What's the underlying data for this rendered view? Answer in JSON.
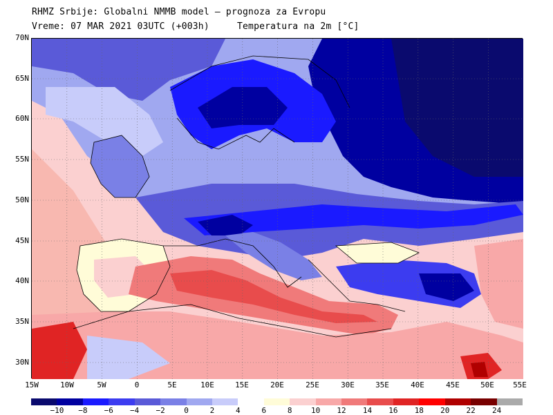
{
  "header": {
    "line1": "RHMZ Srbije: Globalni NMMB model — prognoza za Evropu",
    "line2": "Vreme: 07 MAR 2021 03UTC (+003h)     Temperatura na 2m [°C]"
  },
  "map": {
    "lat_labels": [
      "70N",
      "65N",
      "60N",
      "55N",
      "50N",
      "45N",
      "40N",
      "35N",
      "30N"
    ],
    "lon_labels": [
      "15W",
      "10W",
      "5W",
      "0",
      "5E",
      "10E",
      "15E",
      "20E",
      "25E",
      "30E",
      "35E",
      "40E",
      "45E",
      "50E",
      "55E"
    ],
    "variable": "Temperatura na 2m",
    "unit": "°C"
  },
  "legend": {
    "labels": [
      "−10",
      "−8",
      "−6",
      "−4",
      "−2",
      "0",
      "2",
      "4",
      "6",
      "8",
      "10",
      "12",
      "14",
      "16",
      "18",
      "20",
      "22",
      "24"
    ],
    "colors": [
      "#0a0a6e",
      "#0000a0",
      "#1a1aff",
      "#3c3cf0",
      "#5a5ad8",
      "#7a80e6",
      "#a0a8f0",
      "#c8ccfa",
      "#ffffff",
      "#fffcd8",
      "#fbd0d0",
      "#f8a8a8",
      "#f07a7a",
      "#e84c4c",
      "#e02424",
      "#ff0000",
      "#b00000",
      "#780000",
      "#aaaaaa"
    ]
  }
}
